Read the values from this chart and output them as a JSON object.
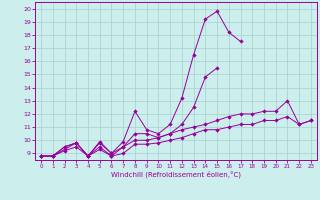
{
  "xlabel": "Windchill (Refroidissement éolien,°C)",
  "bg_color": "#cceeed",
  "grid_color": "#aad4d3",
  "line_color": "#990099",
  "xmin": -0.5,
  "xmax": 23.5,
  "ymin": 8.5,
  "ymax": 20.5,
  "xticks": [
    0,
    1,
    2,
    3,
    4,
    5,
    6,
    7,
    8,
    9,
    10,
    11,
    12,
    13,
    14,
    15,
    16,
    17,
    18,
    19,
    20,
    21,
    22,
    23
  ],
  "yticks": [
    9,
    10,
    11,
    12,
    13,
    14,
    15,
    16,
    17,
    18,
    19,
    20
  ],
  "series": [
    {
      "x": [
        0,
        1,
        2,
        3,
        4,
        5,
        6,
        7,
        8,
        9,
        10,
        11,
        12,
        13,
        14,
        15,
        16,
        17
      ],
      "y": [
        8.8,
        8.8,
        9.5,
        9.8,
        8.8,
        9.9,
        9.0,
        9.9,
        12.2,
        10.8,
        10.5,
        11.2,
        13.2,
        16.5,
        19.2,
        19.8,
        18.2,
        17.5
      ]
    },
    {
      "x": [
        0,
        1,
        2,
        3,
        4,
        5,
        6,
        7,
        8,
        9,
        10,
        11,
        12,
        13,
        14,
        15
      ],
      "y": [
        8.8,
        8.8,
        9.5,
        9.8,
        8.8,
        9.8,
        9.0,
        9.5,
        10.5,
        10.5,
        10.2,
        10.5,
        11.2,
        12.5,
        14.8,
        15.5
      ]
    },
    {
      "x": [
        0,
        1,
        2,
        3,
        4,
        5,
        6,
        7,
        8,
        9,
        10,
        11,
        12,
        13,
        14,
        15,
        16,
        17,
        18,
        19,
        20,
        21,
        22,
        23
      ],
      "y": [
        8.8,
        8.8,
        9.3,
        9.8,
        8.8,
        9.5,
        8.8,
        9.5,
        10.0,
        10.0,
        10.2,
        10.5,
        10.8,
        11.0,
        11.2,
        11.5,
        11.8,
        12.0,
        12.0,
        12.2,
        12.2,
        13.0,
        11.2,
        11.5
      ]
    },
    {
      "x": [
        0,
        1,
        2,
        3,
        4,
        5,
        6,
        7,
        8,
        9,
        10,
        11,
        12,
        13,
        14,
        15,
        16,
        17,
        18,
        19,
        20,
        21,
        22,
        23
      ],
      "y": [
        8.8,
        8.8,
        9.2,
        9.5,
        8.8,
        9.3,
        8.8,
        9.0,
        9.7,
        9.7,
        9.8,
        10.0,
        10.2,
        10.5,
        10.8,
        10.8,
        11.0,
        11.2,
        11.2,
        11.5,
        11.5,
        11.8,
        11.2,
        11.5
      ]
    }
  ]
}
